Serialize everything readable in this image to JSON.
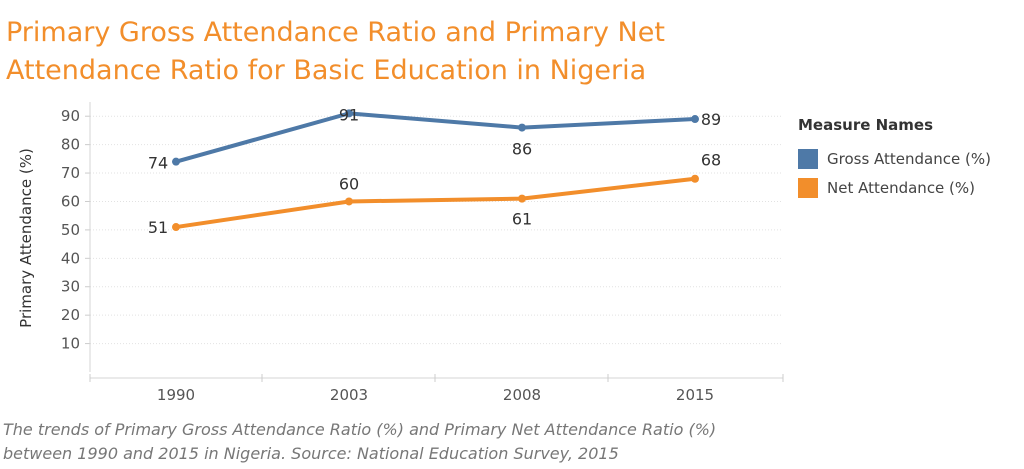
{
  "title_lines": [
    "Primary Gross Attendance Ratio  and Primary Net",
    "Attendance Ratio for Basic Education in Nigeria"
  ],
  "caption_lines": [
    "The trends of Primary Gross Attendance Ratio (%) and Primary Net Attendance Ratio (%)",
    "between 1990 and 2015 in Nigeria. Source: National Education Survey, 2015"
  ],
  "legend": {
    "title": "Measure Names",
    "items": [
      {
        "label": "Gross Attendance (%)",
        "color": "#4e79a7"
      },
      {
        "label": "Net Attendance (%)",
        "color": "#f28e2b"
      }
    ]
  },
  "chart_data": {
    "type": "line",
    "categories": [
      "1990",
      "2003",
      "2008",
      "2015"
    ],
    "series": [
      {
        "name": "Gross Attendance (%)",
        "values": [
          74,
          91,
          86,
          89
        ],
        "color": "#4e79a7"
      },
      {
        "name": "Net Attendance (%)",
        "values": [
          51,
          60,
          61,
          68
        ],
        "color": "#f28e2b"
      }
    ],
    "ylabel": "Primary Attendance (%)",
    "ylim": [
      0,
      95
    ],
    "yticks": [
      10,
      20,
      30,
      40,
      50,
      60,
      70,
      80,
      90
    ],
    "grid": true,
    "legend_position": "right"
  }
}
